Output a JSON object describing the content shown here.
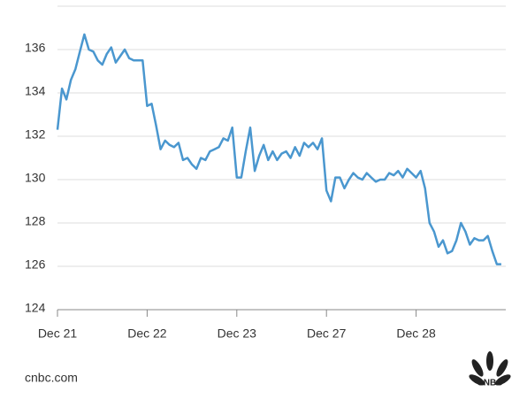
{
  "chart_data": {
    "type": "line",
    "categories": [
      "Dec 21",
      null,
      null,
      null,
      null,
      null,
      null,
      null,
      null,
      null,
      null,
      null,
      null,
      null,
      null,
      null,
      null,
      null,
      null,
      null,
      "Dec 22",
      null,
      null,
      null,
      null,
      null,
      null,
      null,
      null,
      null,
      null,
      null,
      null,
      null,
      null,
      null,
      null,
      null,
      null,
      null,
      "Dec 23",
      null,
      null,
      null,
      null,
      null,
      null,
      null,
      null,
      null,
      null,
      null,
      null,
      null,
      null,
      null,
      null,
      null,
      null,
      null,
      "Dec 27",
      null,
      null,
      null,
      null,
      null,
      null,
      null,
      null,
      null,
      null,
      null,
      null,
      null,
      null,
      null,
      null,
      null,
      null,
      null,
      "Dec 28",
      null,
      null,
      null,
      null,
      null,
      null,
      null,
      null,
      null,
      null,
      null,
      null,
      null,
      null,
      null,
      null,
      null,
      null,
      null
    ],
    "values": [
      132.3,
      134.2,
      133.7,
      134.6,
      135.1,
      135.9,
      136.7,
      136.0,
      135.9,
      135.5,
      135.3,
      135.8,
      136.1,
      135.4,
      135.7,
      136.0,
      135.6,
      135.5,
      135.5,
      135.5,
      133.4,
      133.5,
      132.5,
      131.4,
      131.8,
      131.6,
      131.5,
      131.7,
      130.9,
      131.0,
      130.7,
      130.5,
      131.0,
      130.9,
      131.3,
      131.4,
      131.5,
      131.9,
      131.8,
      132.4,
      130.1,
      130.1,
      131.3,
      132.4,
      130.4,
      131.1,
      131.6,
      130.9,
      131.3,
      130.9,
      131.2,
      131.3,
      131.0,
      131.5,
      131.1,
      131.7,
      131.5,
      131.7,
      131.4,
      131.9,
      129.5,
      129.0,
      130.1,
      130.1,
      129.6,
      130.0,
      130.3,
      130.1,
      130.0,
      130.3,
      130.1,
      129.9,
      130.0,
      130.0,
      130.3,
      130.2,
      130.4,
      130.1,
      130.5,
      130.3,
      130.1,
      130.4,
      129.6,
      128.0,
      127.6,
      126.9,
      127.2,
      126.6,
      126.7,
      127.2,
      128.0,
      127.6,
      127.0,
      127.3,
      127.2,
      127.2,
      127.4,
      126.7,
      126.1,
      126.1
    ],
    "color": "#4a97cf",
    "ylim": [
      124,
      138
    ],
    "yticks": [
      124,
      126,
      128,
      130,
      132,
      134,
      136
    ],
    "grid": true,
    "source": "cnbc.com",
    "logo": "CNBC"
  }
}
